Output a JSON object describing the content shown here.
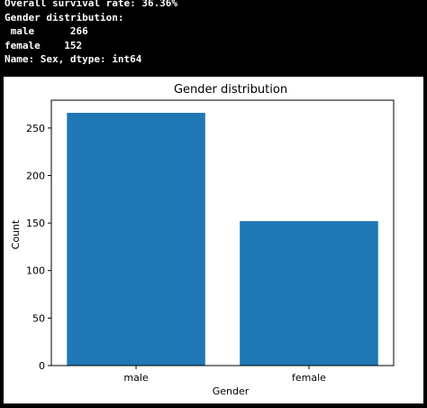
{
  "console": {
    "lines": [
      "Overall survival rate: 36.36%",
      "Gender distribution:",
      " male      266",
      "female    152",
      "Name: Sex, dtype: int64"
    ]
  },
  "chart_data": {
    "type": "bar",
    "title": "Gender distribution",
    "xlabel": "Gender",
    "ylabel": "Count",
    "categories": [
      "male",
      "female"
    ],
    "values": [
      266,
      152
    ],
    "ylim": [
      0,
      279.3
    ],
    "yticks": [
      0,
      50,
      100,
      150,
      200,
      250
    ],
    "bar_color": "#1f77b4",
    "grid": false,
    "legend": "none"
  }
}
